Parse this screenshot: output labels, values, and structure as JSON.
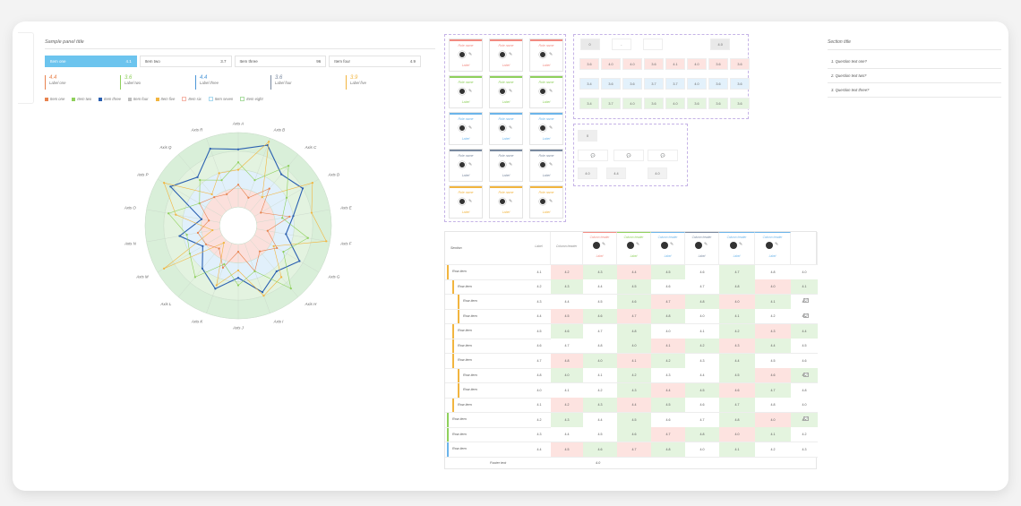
{
  "left": {
    "title": "Sample panel title",
    "tabs": [
      {
        "label": "Item one",
        "value": "4.1"
      },
      {
        "label": "Item two",
        "value": "3.7"
      },
      {
        "label": "Item three",
        "value": "96"
      },
      {
        "label": "Item four",
        "value": "4.9"
      }
    ],
    "stats": [
      {
        "value": "4.4",
        "label": "Label one",
        "color": "#e8834f"
      },
      {
        "value": "3.6",
        "label": "Label two",
        "color": "#8fd05c"
      },
      {
        "value": "4.4",
        "label": "Label three",
        "color": "#4d98d8"
      },
      {
        "value": "3.6",
        "label": "Label four",
        "color": "#7a8aa0"
      },
      {
        "value": "3.9",
        "label": "Label five",
        "color": "#f2b53f"
      }
    ],
    "legend": [
      {
        "label": "Item one",
        "color": "#e8834f",
        "kind": "dot"
      },
      {
        "label": "Item two",
        "color": "#8fd05c",
        "kind": "dot"
      },
      {
        "label": "Item three",
        "color": "#2a5fb0",
        "kind": "dot"
      },
      {
        "label": "Item four",
        "color": "#bdbdbd",
        "kind": "dot"
      },
      {
        "label": "Item five",
        "color": "#f2b53f",
        "kind": "dot"
      },
      {
        "label": "Item six",
        "color": "#f5b5a8",
        "kind": "box"
      },
      {
        "label": "Item seven",
        "color": "#a7d8ef",
        "kind": "box"
      },
      {
        "label": "Item eight",
        "color": "#a9dca0",
        "kind": "box"
      }
    ]
  },
  "radar": {
    "axes": [
      "Axis A",
      "Axis B",
      "Axis C",
      "Axis D",
      "Axis E",
      "Axis F",
      "Axis G",
      "Axis H",
      "Axis I",
      "Axis J",
      "Axis K",
      "Axis L",
      "Axis M",
      "Axis N",
      "Axis O",
      "Axis P",
      "Axis Q",
      "Axis R"
    ],
    "max": 5,
    "series": [
      {
        "color": "#2a5fb0",
        "width": 1.1,
        "values": [
          4.1,
          4.6,
          3.6,
          4.0,
          3.0,
          2.6,
          3.8,
          3.2,
          3.8,
          2.8,
          3.6,
          3.0,
          2.2,
          3.2,
          2.0,
          4.2,
          3.4,
          4.4
        ]
      },
      {
        "color": "#f2b53f",
        "width": 0.6,
        "values": [
          3.0,
          4.8,
          2.0,
          4.6,
          4.0,
          4.8,
          2.2,
          3.6,
          4.0,
          2.4,
          3.4,
          1.2,
          4.6,
          1.4,
          3.4,
          4.6,
          2.2,
          3.0
        ]
      },
      {
        "color": "#e8834f",
        "width": 0.6,
        "values": [
          2.2,
          1.6,
          2.6,
          1.4,
          2.8,
          1.6,
          2.4,
          1.8,
          2.6,
          1.4,
          2.4,
          1.6,
          2.0,
          2.2,
          1.6,
          2.4,
          2.0,
          1.8
        ]
      },
      {
        "color": "#8fd05c",
        "width": 0.6,
        "values": [
          3.4,
          2.6,
          4.2,
          3.0,
          2.4,
          3.8,
          2.8,
          4.4,
          2.6,
          3.2,
          2.2,
          3.6,
          3.0,
          2.8,
          3.8,
          2.4,
          3.2,
          2.6
        ]
      }
    ]
  },
  "people": {
    "rows": [
      {
        "title": "Role name",
        "badge": "Label",
        "color": "#f28b82"
      },
      {
        "title": "Role name",
        "badge": "Label",
        "color": "#8fd05c"
      },
      {
        "title": "Role name",
        "badge": "Label",
        "color": "#6bb4ea"
      },
      {
        "title": "Role name",
        "badge": "Label",
        "color": "#7a8aa0"
      },
      {
        "title": "Role name",
        "badge": "Label",
        "color": "#f2b53f"
      }
    ]
  },
  "matrix": {
    "header": [
      "0",
      "-",
      "",
      "4.0"
    ],
    "rows": [
      {
        "bg": "#fde3e0",
        "cells": [
          "3.6",
          "4.0",
          "4.0",
          "3.6",
          "4.1",
          "4.0",
          "3.6",
          "3.6"
        ]
      },
      {
        "bg": "#e3f1fb",
        "cells": [
          "3.4",
          "3.6",
          "3.6",
          "3.7",
          "3.7",
          "4.0",
          "3.6",
          "3.6"
        ]
      },
      {
        "bg": "#e4f4df",
        "cells": [
          "3.4",
          "3.7",
          "4.0",
          "3.6",
          "4.0",
          "3.6",
          "3.6",
          "3.6"
        ]
      }
    ],
    "lower": [
      "0",
      "4.0",
      "4.4",
      "4.0"
    ]
  },
  "questions": {
    "title": "Section title",
    "items": [
      "1. Question text one?",
      "2. Question text two?",
      "3. Question text three?"
    ]
  },
  "table": {
    "header_label": "Section",
    "col_labels": [
      "Label",
      "Column header",
      "Column header",
      "Column header",
      "Column header",
      "Column header",
      "Column header",
      "Column header"
    ],
    "footer": "Footer text",
    "footer_value": "4.0",
    "rows": [
      {
        "label": "Row item",
        "bar": "#f2b53f",
        "indent": 0
      },
      {
        "label": "Row item",
        "bar": "#f2b53f",
        "indent": 1
      },
      {
        "label": "Row item",
        "bar": "#f2b53f",
        "indent": 2
      },
      {
        "label": "Row item",
        "bar": "#f2b53f",
        "indent": 2
      },
      {
        "label": "Row item",
        "bar": "#f2b53f",
        "indent": 1
      },
      {
        "label": "Row item",
        "bar": "#f2b53f",
        "indent": 1
      },
      {
        "label": "Row item",
        "bar": "#f2b53f",
        "indent": 1
      },
      {
        "label": "Row item",
        "bar": "#f2b53f",
        "indent": 2
      },
      {
        "label": "Row item",
        "bar": "#f2b53f",
        "indent": 2
      },
      {
        "label": "Row item",
        "bar": "#f2b53f",
        "indent": 1
      },
      {
        "label": "Row item",
        "bar": "#8fd05c",
        "indent": 0
      },
      {
        "label": "Row item",
        "bar": "#8fd05c",
        "indent": 0
      },
      {
        "label": "Row item",
        "bar": "#6bb4ea",
        "indent": 0
      }
    ]
  }
}
